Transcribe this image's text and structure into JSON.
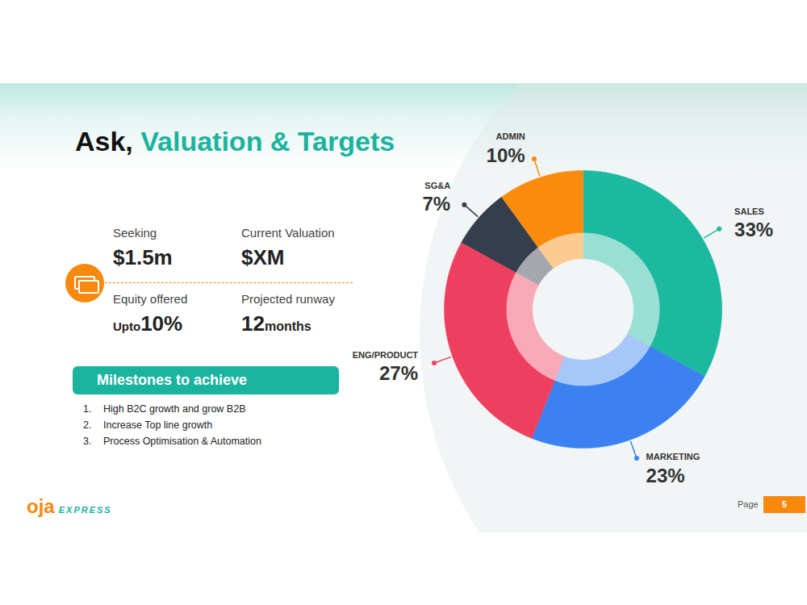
{
  "chart_data": {
    "type": "donut",
    "categories": [
      "SALES",
      "MARKETING",
      "ENG/PRODUCT",
      "SG&A",
      "ADMIN"
    ],
    "values": [
      33,
      23,
      27,
      7,
      10
    ],
    "value_labels": [
      "33%",
      "23%",
      "27%",
      "7%",
      "10%"
    ],
    "colors": [
      "#1db8a0",
      "#3b82f0",
      "#ef3f5e",
      "#343e4c",
      "#fb8b0c"
    ],
    "data_labels": true,
    "tick_labels": false
  },
  "slide": {
    "title_prefix": "Ask,",
    "title_highlight": "Valuation & Targets",
    "metrics": [
      {
        "label": "Seeking",
        "value": "$1.5m"
      },
      {
        "label": "Current Valuation",
        "value": "$XM"
      },
      {
        "label": "Equity offered",
        "prefix": "Upto",
        "value": "10%"
      },
      {
        "label": "Projected runway",
        "value": "12",
        "unit": "months"
      }
    ],
    "milestones_heading": "Milestones to achieve",
    "milestones": [
      {
        "number": "1.",
        "text": "High B2C growth and grow B2B"
      },
      {
        "number": "2.",
        "text": "Increase Top line growth"
      },
      {
        "number": "3.",
        "text": "Process Optimisation & Automation"
      }
    ],
    "logo": {
      "text": "oja",
      "subtext": "EXPRESS"
    },
    "page_label": "Page",
    "page_number": "5"
  }
}
